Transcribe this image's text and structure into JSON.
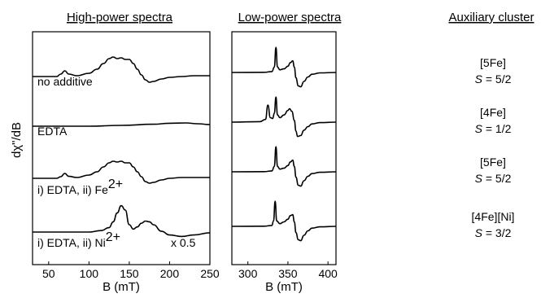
{
  "figure": {
    "y_axis_label": "dχ\"/dB",
    "column_titles": {
      "left": "High-power spectra",
      "middle": "Low-power spectra",
      "right": "Auxiliary cluster"
    }
  },
  "chart_data": [
    {
      "type": "line",
      "title": "High-power spectra",
      "xlabel": "B (mT)",
      "ylabel": "dχ\"/dB",
      "xlim": [
        30,
        250
      ],
      "xticks": [
        50,
        100,
        150,
        200,
        250
      ],
      "grid": false,
      "series": [
        {
          "name": "no additive",
          "x": [
            30,
            60,
            65,
            70,
            75,
            85,
            100,
            110,
            118,
            125,
            130,
            135,
            140,
            145,
            150,
            155,
            160,
            165,
            170,
            175,
            180,
            190,
            200,
            215,
            230,
            250
          ],
          "y": [
            0,
            0,
            0.15,
            0.35,
            0.15,
            0.05,
            0.2,
            0.45,
            0.8,
            1.1,
            1.2,
            1.1,
            1.15,
            1.05,
            1.05,
            0.8,
            0.45,
            0.1,
            -0.2,
            -0.35,
            -0.3,
            -0.15,
            -0.05,
            0,
            0.05,
            0.05
          ]
        },
        {
          "name": "EDTA",
          "x": [
            30,
            100,
            140,
            180,
            200,
            220,
            235,
            250
          ],
          "y": [
            0,
            0,
            0.05,
            0.12,
            0.18,
            0.2,
            0.15,
            0.1
          ]
        },
        {
          "name": "i) EDTA, ii) Fe²⁺",
          "x": [
            30,
            60,
            65,
            70,
            75,
            85,
            100,
            110,
            118,
            125,
            130,
            135,
            140,
            145,
            150,
            155,
            160,
            165,
            170,
            175,
            180,
            190,
            200,
            215,
            230,
            250
          ],
          "y": [
            0,
            0,
            0.1,
            0.3,
            0.12,
            0.05,
            0.2,
            0.4,
            0.7,
            0.95,
            1.05,
            1.0,
            1.05,
            0.95,
            0.95,
            0.7,
            0.4,
            0.1,
            -0.2,
            -0.3,
            -0.25,
            -0.1,
            0,
            0.05,
            0.05,
            0.05
          ]
        },
        {
          "name": "i) EDTA, ii) Ni²⁺",
          "x": [
            30,
            100,
            115,
            125,
            130,
            135,
            140,
            145,
            150,
            155,
            160,
            165,
            170,
            175,
            180,
            190,
            200,
            215,
            230,
            250
          ],
          "y": [
            0,
            0,
            0.1,
            0.3,
            0.7,
            1.3,
            1.8,
            1.5,
            0.5,
            0.2,
            0.35,
            0.6,
            0.75,
            0.7,
            0.5,
            0.05,
            -0.2,
            -0.3,
            -0.2,
            -0.05
          ]
        }
      ]
    },
    {
      "type": "line",
      "title": "Low-power spectra",
      "xlabel": "B (mT)",
      "ylabel": "dχ\"/dB",
      "xlim": [
        280,
        410
      ],
      "xticks": [
        300,
        350,
        400
      ],
      "grid": false,
      "series": [
        {
          "name": "no additive",
          "x": [
            280,
            320,
            330,
            333,
            335,
            337,
            340,
            345,
            350,
            353,
            356,
            358,
            360,
            363,
            366,
            370,
            375,
            380,
            390,
            410
          ],
          "y": [
            0,
            0.02,
            0.1,
            0.6,
            2.8,
            0.6,
            0.3,
            0.4,
            0.7,
            1.1,
            1.3,
            0.6,
            -0.6,
            -1.5,
            -1.6,
            -1.0,
            -0.5,
            -0.2,
            -0.05,
            0
          ]
        },
        {
          "name": "EDTA",
          "x": [
            280,
            315,
            322,
            325,
            328,
            331,
            333,
            335,
            337,
            340,
            345,
            350,
            352,
            355,
            358,
            360,
            362,
            366,
            370,
            375,
            380,
            390,
            410
          ],
          "y": [
            0,
            0.05,
            0.3,
            1.9,
            0.5,
            0.4,
            1.0,
            2.8,
            0.8,
            0.5,
            0.8,
            1.3,
            1.5,
            1.2,
            0.2,
            -1.0,
            -1.6,
            -1.5,
            -0.9,
            -0.5,
            -0.2,
            -0.05,
            0
          ]
        },
        {
          "name": "i) EDTA, ii) Fe²⁺",
          "x": [
            280,
            320,
            330,
            333,
            335,
            337,
            340,
            345,
            350,
            353,
            356,
            358,
            360,
            363,
            366,
            370,
            375,
            380,
            390,
            410
          ],
          "y": [
            0,
            0.02,
            0.1,
            0.6,
            2.8,
            0.6,
            0.3,
            0.4,
            0.7,
            1.1,
            1.3,
            0.6,
            -0.6,
            -1.5,
            -1.6,
            -1.0,
            -0.5,
            -0.2,
            -0.05,
            0
          ]
        },
        {
          "name": "i) EDTA, ii) Ni²⁺",
          "x": [
            280,
            320,
            330,
            332,
            334,
            336,
            340,
            345,
            350,
            353,
            356,
            358,
            360,
            363,
            366,
            370,
            375,
            380,
            390,
            410
          ],
          "y": [
            0,
            0.02,
            0.1,
            0.6,
            2.8,
            0.6,
            0.3,
            0.5,
            0.8,
            1.2,
            1.3,
            0.5,
            -0.7,
            -1.5,
            -1.6,
            -1.0,
            -0.5,
            -0.2,
            -0.05,
            0
          ]
        }
      ]
    }
  ],
  "trace_labels": [
    {
      "text": "no additive"
    },
    {
      "text": "EDTA"
    },
    {
      "text": "i) EDTA, ii) Fe",
      "sup": "2+"
    },
    {
      "text": "i) EDTA, ii) Ni",
      "sup": "2+",
      "scale": "x 0.5"
    }
  ],
  "auxiliary_clusters": [
    {
      "cluster": "[5Fe]",
      "spin_symbol": "S",
      "spin_value": " = 5/2"
    },
    {
      "cluster": "[4Fe]",
      "spin_symbol": "S",
      "spin_value": " = 1/2"
    },
    {
      "cluster": "[5Fe]",
      "spin_symbol": "S",
      "spin_value": " = 5/2"
    },
    {
      "cluster": "[4Fe][Ni]",
      "spin_symbol": "S",
      "spin_value": " = 3/2"
    }
  ]
}
